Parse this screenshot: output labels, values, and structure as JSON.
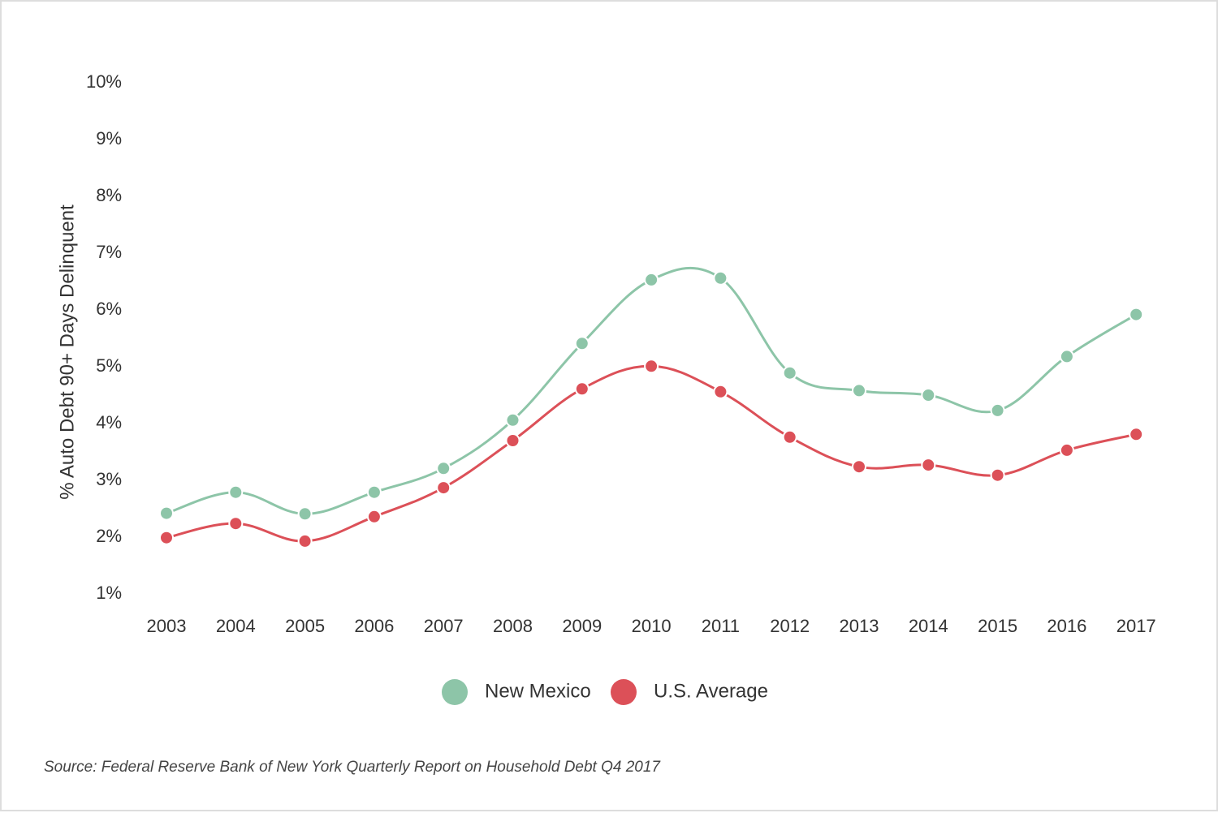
{
  "chart_data": {
    "type": "line",
    "title": "",
    "xlabel": "",
    "ylabel": "% Auto Debt 90+ Days Delinquent",
    "ylim": [
      1,
      10
    ],
    "yticks": [
      "1%",
      "2%",
      "3%",
      "4%",
      "5%",
      "6%",
      "7%",
      "8%",
      "9%",
      "10%"
    ],
    "x": [
      "2003",
      "2004",
      "2005",
      "2006",
      "2007",
      "2008",
      "2009",
      "2010",
      "2011",
      "2012",
      "2013",
      "2014",
      "2015",
      "2016",
      "2017"
    ],
    "grid": false,
    "legend_position": "bottom-center",
    "series": [
      {
        "name": "New Mexico",
        "color": "#8dc5a8",
        "values": [
          2.42,
          2.79,
          2.41,
          2.79,
          3.21,
          4.06,
          5.41,
          6.53,
          6.56,
          4.89,
          4.58,
          4.5,
          4.23,
          5.18,
          5.92
        ]
      },
      {
        "name": "U.S. Average",
        "color": "#dc5058",
        "values": [
          1.99,
          2.24,
          1.93,
          2.36,
          2.87,
          3.7,
          4.61,
          5.01,
          4.56,
          3.76,
          3.24,
          3.27,
          3.09,
          3.53,
          3.81
        ]
      }
    ]
  },
  "footer": {
    "source": "Source: Federal Reserve Bank of New York Quarterly Report on Household Debt Q4 2017"
  }
}
